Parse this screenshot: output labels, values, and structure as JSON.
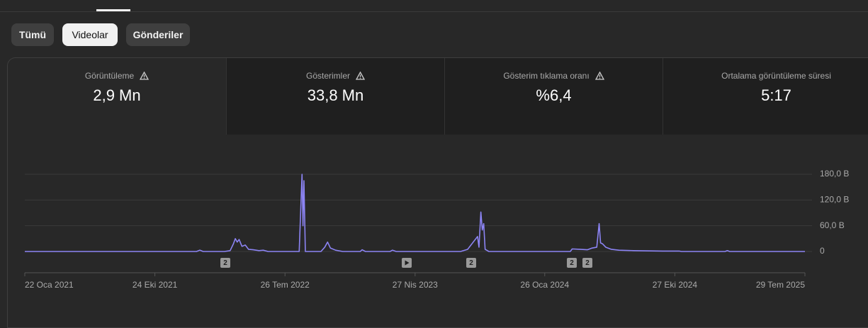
{
  "tabs": [
    "Tümü",
    "Videolar",
    "Gönderiler"
  ],
  "metrics": [
    {
      "label": "Görüntüleme",
      "value": "2,9 Mn"
    },
    {
      "label": "Gösterimler",
      "value": "33,8 Mn"
    },
    {
      "label": "Gösterim tıklama oranı",
      "value": "%6,4"
    },
    {
      "label": "Ortalama görüntüleme süresi",
      "value": "5:17"
    }
  ],
  "markers": [
    "2",
    "2",
    "2",
    "2"
  ],
  "chart_data": {
    "type": "line",
    "color": "#8c84f4",
    "x": [
      "2021-01-22",
      "2022-01-20",
      "2022-01-27",
      "2022-02-03",
      "2022-03-20",
      "2022-04-01",
      "2022-04-08",
      "2022-04-12",
      "2022-04-16",
      "2022-04-20",
      "2022-04-26",
      "2022-05-03",
      "2022-05-10",
      "2022-05-20",
      "2022-06-01",
      "2022-06-10",
      "2022-06-20",
      "2022-08-25",
      "2022-08-31",
      "2022-09-02",
      "2022-09-04",
      "2022-09-07",
      "2022-10-10",
      "2022-10-18",
      "2022-10-24",
      "2022-10-30",
      "2022-11-10",
      "2022-11-25",
      "2023-01-01",
      "2023-01-05",
      "2023-01-12",
      "2023-03-05",
      "2023-03-10",
      "2023-03-18",
      "2023-08-01",
      "2023-08-16",
      "2023-09-06",
      "2023-09-09",
      "2023-09-13",
      "2023-09-16",
      "2023-09-19",
      "2023-09-22",
      "2023-09-30",
      "2024-03-20",
      "2024-03-24",
      "2024-04-10",
      "2024-04-25",
      "2024-05-05",
      "2024-05-15",
      "2024-05-20",
      "2024-05-23",
      "2024-05-27",
      "2024-06-03",
      "2024-06-15",
      "2024-07-01",
      "2024-08-01",
      "2024-10-01",
      "2024-11-05",
      "2024-11-10",
      "2025-02-10",
      "2025-02-15",
      "2025-02-20",
      "2025-07-29"
    ],
    "values": [
      0,
      0,
      3,
      0,
      0,
      2,
      18,
      30,
      22,
      28,
      12,
      15,
      5,
      4,
      2,
      3,
      0,
      0,
      180,
      60,
      165,
      0,
      0,
      10,
      22,
      8,
      3,
      0,
      0,
      4,
      0,
      0,
      3,
      0,
      0,
      5,
      35,
      10,
      92,
      50,
      65,
      5,
      0,
      0,
      6,
      5,
      4,
      8,
      10,
      65,
      20,
      18,
      10,
      5,
      3,
      2,
      1,
      1,
      0,
      0,
      2,
      0,
      0
    ],
    "xlim": [
      "2021-01-22",
      "2025-07-29"
    ],
    "xticks": [
      {
        "value": "2021-01-22",
        "label": "22 Oca 2021"
      },
      {
        "value": "2021-10-24",
        "label": "24 Eki 2021"
      },
      {
        "value": "2022-07-26",
        "label": "26 Tem 2022"
      },
      {
        "value": "2023-04-27",
        "label": "27 Nis 2023"
      },
      {
        "value": "2024-01-26",
        "label": "26 Oca 2024"
      },
      {
        "value": "2024-10-27",
        "label": "27 Eki 2024"
      },
      {
        "value": "2025-07-29",
        "label": "29 Tem 2025"
      }
    ],
    "ylim": [
      0,
      180
    ],
    "yticks": [
      0,
      {
        "value": 60,
        "label": "60,0 B"
      },
      {
        "value": 120,
        "label": "120,0 B"
      },
      {
        "value": 180,
        "label": "180,0 B"
      }
    ],
    "grid": true
  }
}
